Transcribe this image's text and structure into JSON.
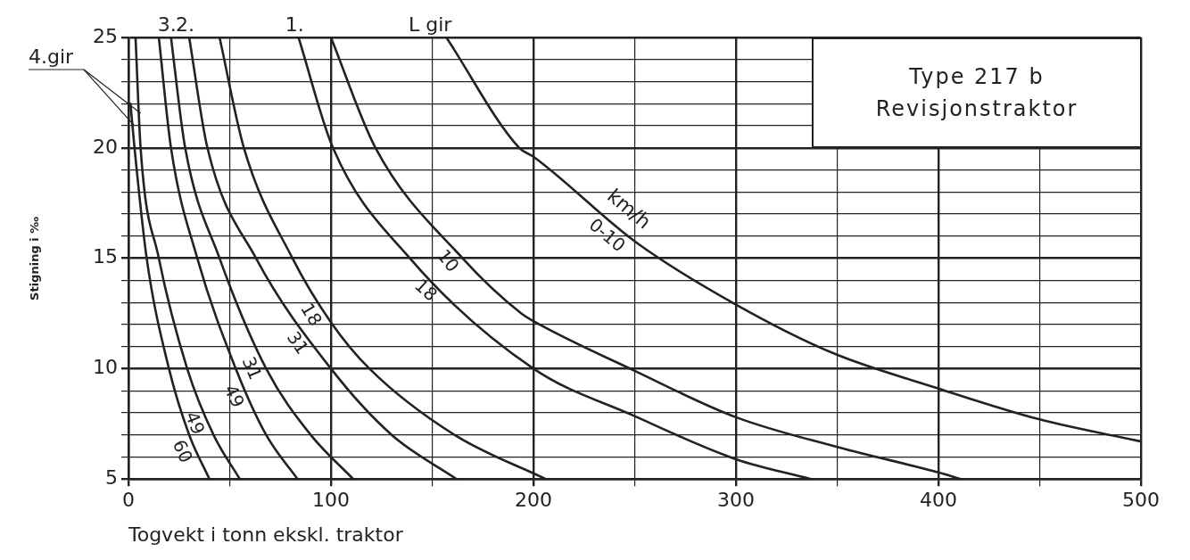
{
  "chart_data": {
    "type": "line",
    "title": "Type 217 b",
    "subtitle": "Revisjonstraktor",
    "xlabel": "Togvekt i tonn ekskl. traktor",
    "ylabel": "Stigning i ‰",
    "xlim": [
      0,
      500
    ],
    "ylim": [
      5,
      25
    ],
    "xticks": [
      0,
      {
        "value": 50,
        "label": null
      },
      100,
      {
        "value": 150,
        "label": null
      },
      200,
      {
        "value": 250,
        "label": null
      },
      300,
      {
        "value": 350,
        "label": null
      },
      400,
      {
        "value": 450,
        "label": null
      },
      500
    ],
    "yticks": [
      5,
      {
        "value": 6,
        "label": null
      },
      {
        "value": 7,
        "label": null
      },
      {
        "value": 8,
        "label": null
      },
      {
        "value": 9,
        "label": null
      },
      10,
      {
        "value": 11,
        "label": null
      },
      {
        "value": 12,
        "label": null
      },
      {
        "value": 13,
        "label": null
      },
      {
        "value": 14,
        "label": null
      },
      15,
      {
        "value": 16,
        "label": null
      },
      {
        "value": 17,
        "label": null
      },
      {
        "value": 18,
        "label": null
      },
      {
        "value": 19,
        "label": null
      },
      20,
      {
        "value": 21,
        "label": null
      },
      {
        "value": 22,
        "label": null
      },
      {
        "value": 23,
        "label": null
      },
      {
        "value": 24,
        "label": null
      },
      25
    ],
    "grid": true,
    "legend": false,
    "marker": "none",
    "line_style": "solid",
    "series": [
      {
        "name": "60",
        "color": "#222222",
        "x": [
          1,
          3,
          9,
          20,
          30,
          40
        ],
        "values": [
          22,
          20,
          15,
          10,
          7,
          5
        ]
      },
      {
        "name": "49",
        "color": "#222222",
        "x": [
          3.5,
          6,
          15,
          29,
          42,
          55
        ],
        "values": [
          25,
          20,
          15,
          10,
          7,
          5
        ]
      },
      {
        "name": "49",
        "color": "#222222",
        "x": [
          15,
          21,
          34,
          53,
          68,
          83.5
        ],
        "values": [
          25,
          20,
          15,
          10,
          7,
          5
        ]
      },
      {
        "name": "31",
        "color": "#222222",
        "x": [
          21,
          28,
          45,
          68,
          90,
          111
        ],
        "values": [
          25,
          20,
          15,
          10,
          7,
          5
        ]
      },
      {
        "name": "31",
        "color": "#222222",
        "x": [
          30,
          39,
          63,
          100,
          130,
          162
        ],
        "values": [
          25,
          20,
          15,
          10,
          7,
          5
        ]
      },
      {
        "name": "18",
        "color": "#222222",
        "x": [
          45,
          57,
          81,
          100,
          119,
          161,
          206
        ],
        "values": [
          25,
          20,
          15,
          12.1,
          10,
          7,
          5
        ]
      },
      {
        "name": "18",
        "color": "#222222",
        "x": [
          84,
          101,
          139,
          200,
          250,
          300,
          337
        ],
        "values": [
          25,
          20,
          15,
          10,
          7.85,
          5.9,
          5
        ]
      },
      {
        "name": "10",
        "color": "#222222",
        "x": [
          100,
          122,
          165,
          194,
          200,
          250,
          300,
          350,
          400,
          411
        ],
        "values": [
          25,
          20,
          15,
          12.5,
          12.15,
          9.9,
          7.8,
          6.45,
          5.3,
          5
        ]
      },
      {
        "name": "0-10",
        "color": "#222222",
        "x": [
          157,
          193,
          200,
          251,
          300,
          348,
          400,
          450,
          500
        ],
        "values": [
          25,
          20,
          19.6,
          15.7,
          12.9,
          10.7,
          9.1,
          7.7,
          6.7
        ]
      }
    ],
    "annotations": [
      {
        "text": "4.gir",
        "x": 3,
        "y": 21
      },
      {
        "text": "3.",
        "x": 21,
        "y": 25
      },
      {
        "text": "2.",
        "x": 30,
        "y": 25
      },
      {
        "text": "1.",
        "x": 84,
        "y": 25
      },
      {
        "text": "L gir",
        "x": 157,
        "y": 25
      },
      "km/h"
    ]
  }
}
